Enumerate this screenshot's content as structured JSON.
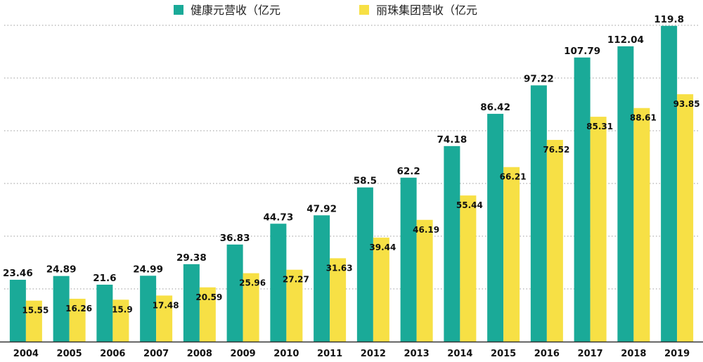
{
  "chart_data": {
    "type": "bar",
    "categories": [
      "2004",
      "2005",
      "2006",
      "2007",
      "2008",
      "2009",
      "2010",
      "2011",
      "2012",
      "2013",
      "2014",
      "2015",
      "2016",
      "2017",
      "2018",
      "2019"
    ],
    "series": [
      {
        "name": "健康元营收（亿元",
        "color": "#1aaa98",
        "values": [
          23.46,
          24.89,
          21.6,
          24.99,
          29.38,
          36.83,
          44.73,
          47.92,
          58.5,
          62.2,
          74.18,
          86.42,
          97.22,
          107.79,
          112.04,
          119.8
        ],
        "labels": [
          "23.46",
          "24.89",
          "21.6",
          "24.99",
          "29.38",
          "36.83",
          "44.73",
          "47.92",
          "58.5",
          "62.2",
          "74.18",
          "86.42",
          "97.22",
          "107.79",
          "112.04",
          "119.8"
        ]
      },
      {
        "name": "丽珠集团营收（亿元",
        "color": "#f7e045",
        "values": [
          15.55,
          16.26,
          15.9,
          17.48,
          20.59,
          25.96,
          27.27,
          31.63,
          39.44,
          46.19,
          55.44,
          66.21,
          76.52,
          85.31,
          88.61,
          93.85
        ],
        "labels": [
          "15.55",
          "16.26",
          "15.9",
          "17.48",
          "20.59",
          "25.96",
          "27.27",
          "31.63",
          "39.44",
          "46.19",
          "55.44",
          "66.21",
          "76.52",
          "85.31",
          "88.61",
          "93.85"
        ]
      }
    ],
    "ylim": [
      0,
      120
    ],
    "gridlines": [
      0,
      20,
      40,
      60,
      80,
      100,
      120
    ],
    "grid": true,
    "legend": "top-center"
  }
}
